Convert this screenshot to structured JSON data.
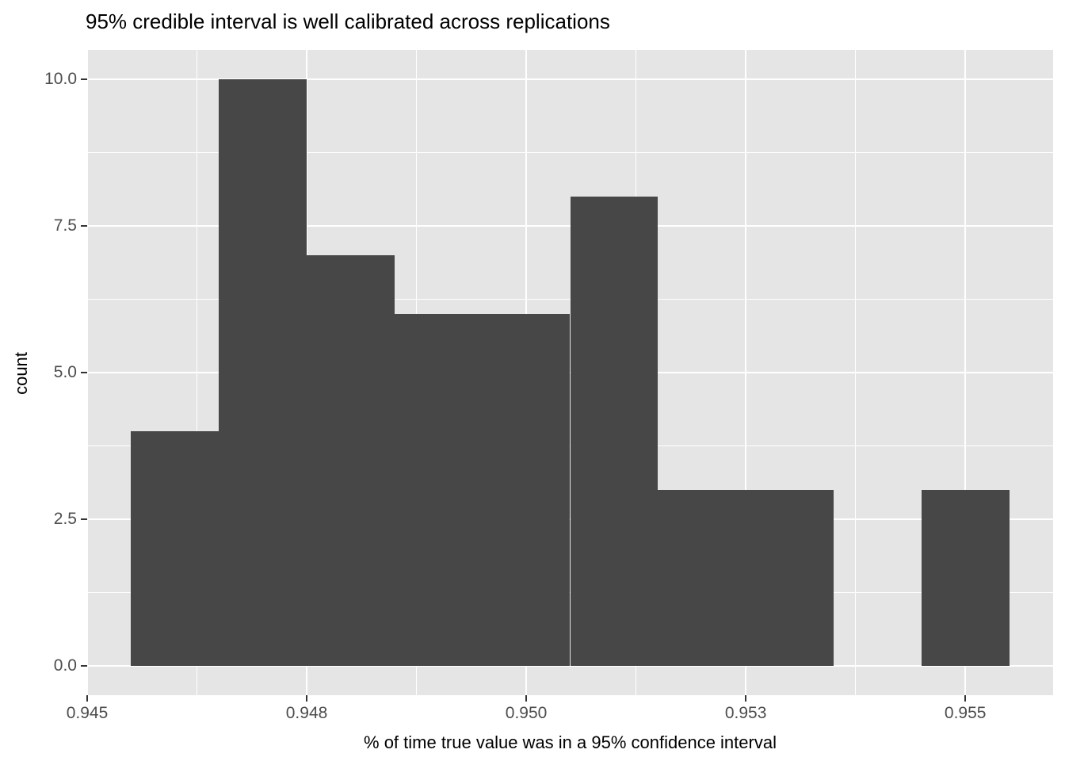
{
  "title": "95% credible interval is well calibrated across replications",
  "colors": {
    "background": "#FFFFFF",
    "panel": "#E5E5E5",
    "grid": "#FFFFFF",
    "bar": "#474747",
    "tick_label": "#4D4D4D",
    "tick_mark": "#333333",
    "text": "#000000"
  },
  "chart_data": {
    "type": "bar",
    "subtype": "histogram",
    "title": "95% credible interval is well calibrated across replications",
    "xlabel": "% of time true value was in a 95% confidence interval",
    "ylabel": "count",
    "bin_start": 0.9455,
    "bin_width": 0.001,
    "counts": [
      4,
      10,
      7,
      6,
      6,
      8,
      3,
      3,
      0,
      3
    ],
    "total_replications": 50,
    "xlim": [
      0.945,
      0.956
    ],
    "ylim": [
      -0.5,
      10.5
    ],
    "x_ticks": {
      "values": [
        0.945,
        0.9475,
        0.95,
        0.9525,
        0.955
      ],
      "labels": [
        "0.945",
        "0.948",
        "0.950",
        "0.953",
        "0.955"
      ]
    },
    "y_ticks": {
      "values": [
        0,
        2.5,
        5,
        7.5,
        10
      ],
      "labels": [
        "0.0",
        "2.5",
        "5.0",
        "7.5",
        "10.0"
      ]
    },
    "x_minor_ticks": [
      0.94625,
      0.94875,
      0.95125,
      0.95375,
      0.95625
    ],
    "y_minor_ticks": [
      1.25,
      3.75,
      6.25,
      8.75
    ],
    "grid": "on",
    "legend": "none",
    "bar_color": "#474747",
    "panel_color": "#E5E5E5",
    "grid_color": "#FFFFFF"
  }
}
